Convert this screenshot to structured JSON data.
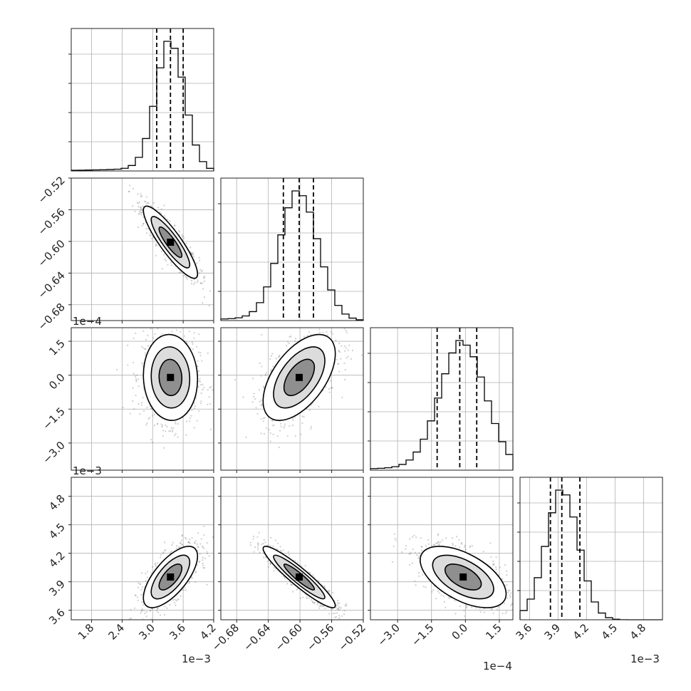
{
  "chart_data": {
    "type": "corner",
    "parameters": [
      {
        "range": [
          1.4,
          4.2
        ],
        "ticks": [
          "1.8",
          "2.4",
          "3.0",
          "3.6",
          "4.2"
        ],
        "tick_values": [
          1.8,
          2.4,
          3.0,
          3.6,
          4.2
        ],
        "exponent_label": "1e−3"
      },
      {
        "range": [
          -0.7,
          -0.52
        ],
        "ticks": [
          "−0.68",
          "−0.64",
          "−0.60",
          "−0.56",
          "−0.52"
        ],
        "tick_values": [
          -0.68,
          -0.64,
          -0.6,
          -0.56,
          -0.52
        ],
        "exponent_label": ""
      },
      {
        "range": [
          -4.2,
          2.1
        ],
        "ticks": [
          "−3.0",
          "−1.5",
          "0.0",
          "1.5"
        ],
        "tick_values": [
          -3.0,
          -1.5,
          0.0,
          1.5
        ],
        "exponent_label": "1e−4"
      },
      {
        "range": [
          3.5,
          5.0
        ],
        "ticks": [
          "3.6",
          "3.9",
          "4.2",
          "4.5",
          "4.8"
        ],
        "tick_values": [
          3.6,
          3.9,
          4.2,
          4.5,
          4.8
        ],
        "exponent_label": "1e−3"
      }
    ],
    "quantiles": [
      [
        3.08,
        3.35,
        3.6
      ],
      [
        -0.621,
        -0.601,
        -0.583
      ],
      [
        -1.25,
        -0.25,
        0.5
      ],
      [
        3.82,
        3.94,
        4.13
      ]
    ],
    "correlations": [
      [
        1.0,
        -0.88,
        -0.05,
        0.68
      ],
      [
        -0.88,
        1.0,
        0.55,
        -0.93
      ],
      [
        -0.05,
        0.55,
        1.0,
        -0.55
      ],
      [
        0.68,
        -0.93,
        -0.55,
        1.0
      ]
    ],
    "centers": [
      3.35,
      -0.601,
      -0.1,
      3.95
    ],
    "spreads": [
      0.28,
      0.024,
      1.0,
      0.17
    ],
    "grid": true,
    "legend": "none"
  },
  "colors": {
    "line": "#000000",
    "grid": "#b0b0b0",
    "frame": "#222222",
    "scatter": "#7a7a7a"
  }
}
